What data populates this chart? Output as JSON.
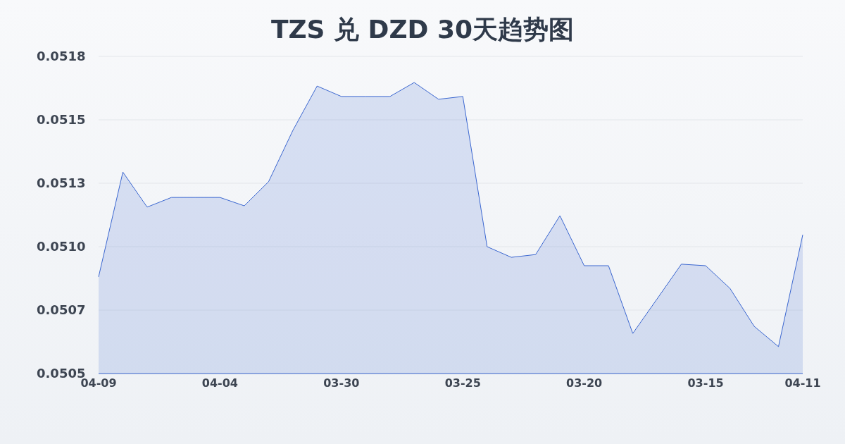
{
  "chart_data": {
    "type": "area",
    "title": "TZS 兑 DZD 30天趋势图",
    "categories": [
      "04-09",
      null,
      null,
      null,
      null,
      "04-04",
      null,
      null,
      null,
      null,
      "03-30",
      null,
      null,
      null,
      null,
      "03-25",
      null,
      null,
      null,
      null,
      "03-20",
      null,
      null,
      null,
      null,
      "03-15",
      null,
      null,
      null,
      "04-11"
    ],
    "series": [
      {
        "color": "#3a66d0",
        "values": [
          0.050881,
          0.051294,
          0.051156,
          0.051194,
          0.051194,
          0.051194,
          0.051161,
          0.051256,
          0.051458,
          0.051633,
          0.051592,
          0.051592,
          0.051592,
          0.051647,
          0.051581,
          0.051592,
          0.051,
          0.050958,
          0.050969,
          0.051122,
          0.050925,
          0.050925,
          0.050658,
          0.050794,
          0.050931,
          0.050925,
          0.050836,
          0.050686,
          0.050606,
          0.051047
        ]
      }
    ],
    "ylim": [
      0.0505,
      0.05175
    ],
    "yticks": [
      0.0505,
      {
        "value": 0.05075,
        "label": "0.0507"
      },
      {
        "value": 0.051,
        "label": "0.0510"
      },
      {
        "value": 0.05125,
        "label": "0.0513"
      },
      0.0515,
      {
        "value": 0.05175,
        "label": "0.0518"
      }
    ],
    "grid": "y"
  }
}
